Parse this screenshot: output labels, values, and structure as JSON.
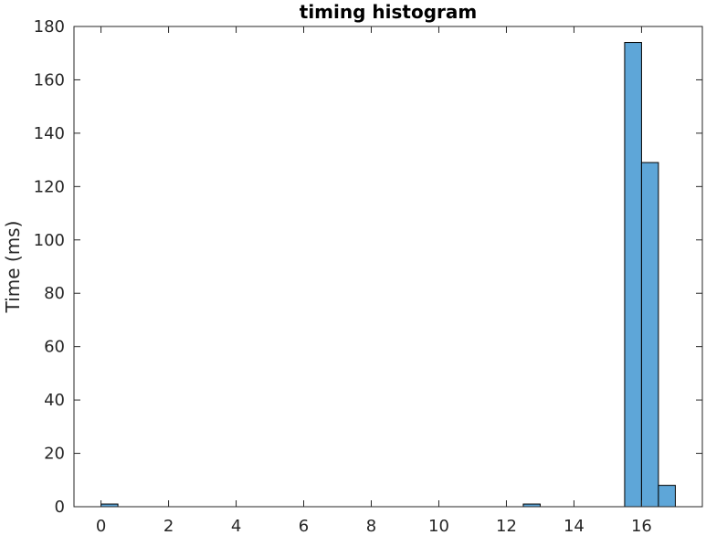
{
  "chart_data": {
    "type": "bar",
    "title": "timing histogram",
    "xlabel": "",
    "ylabel": "Time (ms)",
    "xlim": [
      -0.8,
      17.8
    ],
    "ylim": [
      0,
      180
    ],
    "xticks": [
      0,
      2,
      4,
      6,
      8,
      10,
      12,
      14,
      16
    ],
    "yticks": [
      0,
      20,
      40,
      60,
      80,
      100,
      120,
      140,
      160,
      180
    ],
    "bin_width": 0.5,
    "bins": [
      {
        "x0": 0.0,
        "value": 1
      },
      {
        "x0": 0.5,
        "value": 0
      },
      {
        "x0": 1.0,
        "value": 0
      },
      {
        "x0": 1.5,
        "value": 0
      },
      {
        "x0": 2.0,
        "value": 0
      },
      {
        "x0": 2.5,
        "value": 0
      },
      {
        "x0": 3.0,
        "value": 0
      },
      {
        "x0": 3.5,
        "value": 0
      },
      {
        "x0": 4.0,
        "value": 0
      },
      {
        "x0": 4.5,
        "value": 0
      },
      {
        "x0": 5.0,
        "value": 0
      },
      {
        "x0": 5.5,
        "value": 0
      },
      {
        "x0": 6.0,
        "value": 0
      },
      {
        "x0": 6.5,
        "value": 0
      },
      {
        "x0": 7.0,
        "value": 0
      },
      {
        "x0": 7.5,
        "value": 0
      },
      {
        "x0": 8.0,
        "value": 0
      },
      {
        "x0": 8.5,
        "value": 0
      },
      {
        "x0": 9.0,
        "value": 0
      },
      {
        "x0": 9.5,
        "value": 0
      },
      {
        "x0": 10.0,
        "value": 0
      },
      {
        "x0": 10.5,
        "value": 0
      },
      {
        "x0": 11.0,
        "value": 0
      },
      {
        "x0": 11.5,
        "value": 0
      },
      {
        "x0": 12.0,
        "value": 0
      },
      {
        "x0": 12.5,
        "value": 1
      },
      {
        "x0": 13.0,
        "value": 0
      },
      {
        "x0": 13.5,
        "value": 0
      },
      {
        "x0": 14.0,
        "value": 0
      },
      {
        "x0": 14.5,
        "value": 0
      },
      {
        "x0": 15.0,
        "value": 0
      },
      {
        "x0": 15.5,
        "value": 174
      },
      {
        "x0": 16.0,
        "value": 129
      },
      {
        "x0": 16.5,
        "value": 8
      }
    ],
    "bar_color": "#5ea6d8",
    "edge_color": "#000000",
    "grid": false,
    "box": true
  }
}
